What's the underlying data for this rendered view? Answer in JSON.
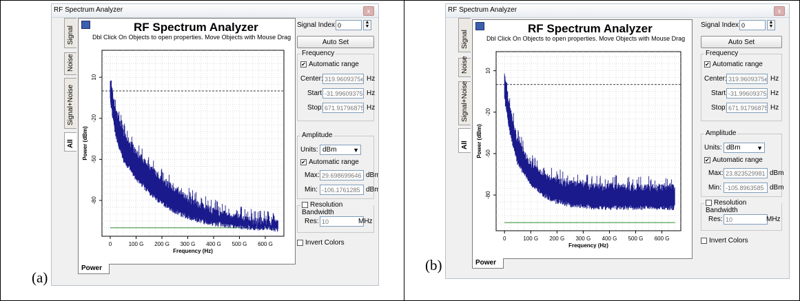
{
  "panels": [
    {
      "caption": "(a)",
      "window_title": "RF Spectrum Analyzer",
      "close_glyph": "x",
      "plot_title": "RF Spectrum Analyzer",
      "subtitle": "Dbl Click On Objects to open properties.  Move Objects with Mouse Drag",
      "tabs": [
        "Signal",
        "Noise",
        "Signal+Noise",
        "All"
      ],
      "bottom_tab": "Power",
      "signal_index_label": "Signal Index:",
      "signal_index_value": "0",
      "auto_set_label": "Auto Set",
      "frequency": {
        "group_label": "Frequency",
        "auto_range_label": "Automatic range",
        "center_label": "Center:",
        "center_value": "319.9609375e",
        "center_unit": "Hz",
        "start_label": "Start:",
        "start_value": "-31.99609375",
        "start_unit": "Hz",
        "stop_label": "Stop:",
        "stop_value": "671.91796875",
        "stop_unit": "Hz"
      },
      "amplitude": {
        "group_label": "Amplitude",
        "units_label": "Units:",
        "units_value": "dBm",
        "auto_range_label": "Automatic range",
        "max_label": "Max:",
        "max_value": "29.698699646",
        "max_unit": "dBm",
        "min_label": "Min:",
        "min_value": "-106.1761285",
        "min_unit": "dBm"
      },
      "resolution": {
        "group_label": "Resolution Bandwidth",
        "res_label": "Res:",
        "res_value": "10",
        "res_unit": "MHz"
      },
      "invert_colors_label": "Invert Colors",
      "chart_data": {
        "type": "line",
        "title": "",
        "xlabel": "Frequency (Hz)",
        "ylabel": "Power (dBm)",
        "x_ticks": [
          "0",
          "100 G",
          "200 G",
          "300 G",
          "400 G",
          "500 G",
          "600 G"
        ],
        "y_ticks": [
          "10",
          "-20",
          "-50",
          "-80"
        ],
        "xlim": [
          -32,
          672
        ],
        "ylim": [
          -106.18,
          29.7
        ],
        "reference_line_dbm": 0,
        "noise_floor_dbm": -100,
        "series": [
          {
            "color": "#1a1a8c",
            "envelope_upper": [
              [
                0,
                10
              ],
              [
                20,
                -10
              ],
              [
                50,
                -28
              ],
              [
                100,
                -42
              ],
              [
                150,
                -53
              ],
              [
                200,
                -62
              ],
              [
                250,
                -70
              ],
              [
                300,
                -76
              ],
              [
                350,
                -81
              ],
              [
                400,
                -85
              ],
              [
                450,
                -88
              ],
              [
                500,
                -90
              ],
              [
                550,
                -92
              ],
              [
                600,
                -93
              ],
              [
                650,
                -94
              ]
            ],
            "envelope_lower": [
              [
                0,
                -5
              ],
              [
                20,
                -30
              ],
              [
                50,
                -48
              ],
              [
                100,
                -62
              ],
              [
                150,
                -72
              ],
              [
                200,
                -80
              ],
              [
                250,
                -86
              ],
              [
                300,
                -90
              ],
              [
                350,
                -93
              ],
              [
                400,
                -95
              ],
              [
                450,
                -96
              ],
              [
                500,
                -97
              ],
              [
                550,
                -98
              ],
              [
                600,
                -98
              ],
              [
                650,
                -99
              ]
            ]
          }
        ]
      }
    },
    {
      "caption": "(b)",
      "window_title": "RF Spectrum Analyzer",
      "close_glyph": "x",
      "plot_title": "RF Spectrum Analyzer",
      "subtitle": "Dbl Click On Objects to open properties.  Move Objects with Mouse Drag",
      "tabs": [
        "Signal",
        "Noise",
        "Signal+Noise",
        "All"
      ],
      "bottom_tab": "Power",
      "signal_index_label": "Signal Index:",
      "signal_index_value": "0",
      "auto_set_label": "Auto Set",
      "frequency": {
        "group_label": "Frequency",
        "auto_range_label": "Automatic range",
        "center_label": "Center:",
        "center_value": "319.9609375e",
        "center_unit": "Hz",
        "start_label": "Start:",
        "start_value": "-31.99609375",
        "start_unit": "Hz",
        "stop_label": "Stop:",
        "stop_value": "671.91796875",
        "stop_unit": "Hz"
      },
      "amplitude": {
        "group_label": "Amplitude",
        "units_label": "Units:",
        "units_value": "dBm",
        "auto_range_label": "Automatic range",
        "max_label": "Max:",
        "max_value": "23.823529981",
        "max_unit": "dBm",
        "min_label": "Min:",
        "min_value": "-105.8963585",
        "min_unit": "dBm"
      },
      "resolution": {
        "group_label": "Resolution Bandwidth",
        "res_label": "Res:",
        "res_value": "10",
        "res_unit": "MHz"
      },
      "invert_colors_label": "Invert Colors",
      "chart_data": {
        "type": "line",
        "title": "",
        "xlabel": "Frequency (Hz)",
        "ylabel": "Power (dBm)",
        "x_ticks": [
          "0",
          "100 G",
          "200 G",
          "300 G",
          "400 G",
          "500 G",
          "600 G"
        ],
        "y_ticks": [
          "10",
          "-20",
          "-50",
          "-80"
        ],
        "xlim": [
          -32,
          672
        ],
        "ylim": [
          -105.9,
          23.82
        ],
        "reference_line_dbm": 0,
        "noise_floor_dbm": -100,
        "series": [
          {
            "color": "#1a1a8c",
            "envelope_upper": [
              [
                0,
                8
              ],
              [
                20,
                -15
              ],
              [
                50,
                -38
              ],
              [
                100,
                -55
              ],
              [
                150,
                -63
              ],
              [
                200,
                -67
              ],
              [
                250,
                -69
              ],
              [
                300,
                -70
              ],
              [
                350,
                -71
              ],
              [
                400,
                -71
              ],
              [
                450,
                -72
              ],
              [
                500,
                -72
              ],
              [
                550,
                -72
              ],
              [
                600,
                -72
              ],
              [
                650,
                -72
              ]
            ],
            "envelope_lower": [
              [
                0,
                -8
              ],
              [
                20,
                -32
              ],
              [
                50,
                -55
              ],
              [
                100,
                -70
              ],
              [
                150,
                -78
              ],
              [
                200,
                -83
              ],
              [
                250,
                -85
              ],
              [
                300,
                -86
              ],
              [
                350,
                -87
              ],
              [
                400,
                -87
              ],
              [
                450,
                -87
              ],
              [
                500,
                -87
              ],
              [
                550,
                -87
              ],
              [
                600,
                -87
              ],
              [
                650,
                -87
              ]
            ]
          }
        ]
      }
    }
  ]
}
